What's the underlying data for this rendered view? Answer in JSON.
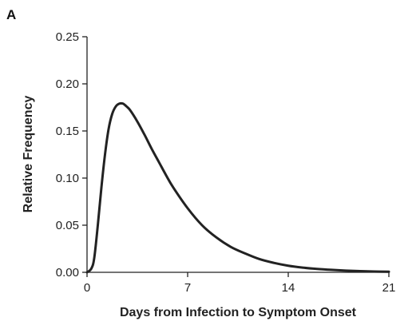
{
  "panel_label": "A",
  "chart_data": {
    "type": "line",
    "xlabel": "Days from Infection to Symptom Onset",
    "ylabel": "Relative Frequency",
    "xlim": [
      0,
      21
    ],
    "ylim": [
      0,
      0.25
    ],
    "xticks": [
      0,
      7,
      14,
      21
    ],
    "xtick_labels": [
      "0",
      "7",
      "14",
      "21"
    ],
    "yticks": [
      0.0,
      0.05,
      0.1,
      0.15,
      0.2,
      0.25
    ],
    "ytick_labels": [
      "0.00",
      "0.05",
      "0.10",
      "0.15",
      "0.20",
      "0.25"
    ],
    "grid": false,
    "series": [
      {
        "color": "#222222",
        "x": [
          0,
          0.3,
          0.5,
          0.75,
          1.0,
          1.25,
          1.5,
          1.75,
          2.0,
          2.25,
          2.5,
          2.75,
          3.0,
          3.5,
          4.0,
          4.5,
          5.0,
          5.5,
          6.0,
          7.0,
          8.0,
          9.0,
          10.0,
          11.0,
          12.0,
          13.0,
          14.0,
          15.0,
          16.0,
          17.0,
          18.0,
          19.0,
          20.0,
          21.0
        ],
        "y": [
          0.0,
          0.004,
          0.015,
          0.05,
          0.09,
          0.125,
          0.152,
          0.168,
          0.176,
          0.179,
          0.179,
          0.176,
          0.172,
          0.16,
          0.146,
          0.131,
          0.117,
          0.103,
          0.09,
          0.068,
          0.05,
          0.037,
          0.027,
          0.02,
          0.014,
          0.01,
          0.007,
          0.005,
          0.0036,
          0.0026,
          0.0018,
          0.0013,
          0.0009,
          0.0006
        ]
      }
    ]
  }
}
